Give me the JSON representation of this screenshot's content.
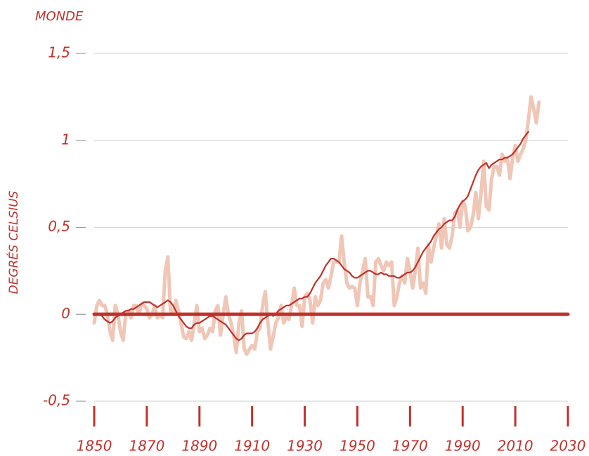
{
  "chart_data": {
    "type": "line",
    "title": "MONDE",
    "y_label": "DEGRÉS CELSIUS",
    "x": [
      1850,
      1851,
      1852,
      1853,
      1854,
      1855,
      1856,
      1857,
      1858,
      1859,
      1860,
      1861,
      1862,
      1863,
      1864,
      1865,
      1866,
      1867,
      1868,
      1869,
      1870,
      1871,
      1872,
      1873,
      1874,
      1875,
      1876,
      1877,
      1878,
      1879,
      1880,
      1881,
      1882,
      1883,
      1884,
      1885,
      1886,
      1887,
      1888,
      1889,
      1890,
      1891,
      1892,
      1893,
      1894,
      1895,
      1896,
      1897,
      1898,
      1899,
      1900,
      1901,
      1902,
      1903,
      1904,
      1905,
      1906,
      1907,
      1908,
      1909,
      1910,
      1911,
      1912,
      1913,
      1914,
      1915,
      1916,
      1917,
      1918,
      1919,
      1920,
      1921,
      1922,
      1923,
      1924,
      1925,
      1926,
      1927,
      1928,
      1929,
      1930,
      1931,
      1932,
      1933,
      1934,
      1935,
      1936,
      1937,
      1938,
      1939,
      1940,
      1941,
      1942,
      1943,
      1944,
      1945,
      1946,
      1947,
      1948,
      1949,
      1950,
      1951,
      1952,
      1953,
      1954,
      1955,
      1956,
      1957,
      1958,
      1959,
      1960,
      1961,
      1962,
      1963,
      1964,
      1965,
      1966,
      1967,
      1968,
      1969,
      1970,
      1971,
      1972,
      1973,
      1974,
      1975,
      1976,
      1977,
      1978,
      1979,
      1980,
      1981,
      1982,
      1983,
      1984,
      1985,
      1986,
      1987,
      1988,
      1989,
      1990,
      1991,
      1992,
      1993,
      1994,
      1995,
      1996,
      1997,
      1998,
      1999,
      2000,
      2001,
      2002,
      2003,
      2004,
      2005,
      2006,
      2007,
      2008,
      2009,
      2010,
      2011,
      2012,
      2013,
      2014,
      2015,
      2016,
      2017,
      2018,
      2019
    ],
    "series": [
      {
        "color": "#f0c6b6",
        "values": [
          -0.05,
          0.05,
          0.08,
          0.05,
          0.05,
          0.0,
          -0.1,
          -0.15,
          0.05,
          0.0,
          -0.1,
          -0.15,
          0.0,
          0.02,
          -0.02,
          0.05,
          0.05,
          0.0,
          0.06,
          0.05,
          0.03,
          -0.02,
          0.0,
          0.05,
          -0.02,
          0.0,
          -0.02,
          0.25,
          0.33,
          0.02,
          0.0,
          0.08,
          0.02,
          -0.05,
          -0.13,
          -0.14,
          -0.1,
          -0.15,
          -0.05,
          0.05,
          -0.1,
          -0.08,
          -0.14,
          -0.12,
          -0.08,
          -0.1,
          0.02,
          0.05,
          -0.12,
          0.0,
          0.1,
          0.0,
          -0.05,
          -0.12,
          -0.22,
          -0.05,
          0.02,
          -0.2,
          -0.23,
          -0.2,
          -0.18,
          -0.2,
          -0.1,
          -0.08,
          0.05,
          0.13,
          -0.05,
          -0.2,
          -0.13,
          -0.05,
          -0.02,
          0.05,
          -0.05,
          -0.02,
          -0.03,
          0.05,
          0.15,
          0.05,
          0.05,
          -0.07,
          0.1,
          0.12,
          0.08,
          -0.05,
          0.1,
          0.05,
          0.08,
          0.18,
          0.2,
          0.15,
          0.22,
          0.3,
          0.3,
          0.3,
          0.45,
          0.3,
          0.18,
          0.15,
          0.16,
          0.15,
          0.05,
          0.18,
          0.25,
          0.32,
          0.1,
          0.1,
          0.05,
          0.3,
          0.32,
          0.28,
          0.25,
          0.3,
          0.28,
          0.3,
          0.05,
          0.1,
          0.18,
          0.22,
          0.18,
          0.32,
          0.25,
          0.15,
          0.25,
          0.38,
          0.15,
          0.18,
          0.12,
          0.4,
          0.3,
          0.38,
          0.45,
          0.52,
          0.38,
          0.55,
          0.4,
          0.38,
          0.45,
          0.58,
          0.6,
          0.5,
          0.65,
          0.62,
          0.48,
          0.5,
          0.57,
          0.7,
          0.55,
          0.7,
          0.88,
          0.62,
          0.6,
          0.78,
          0.85,
          0.85,
          0.8,
          0.92,
          0.88,
          0.9,
          0.78,
          0.9,
          0.97,
          0.88,
          0.92,
          0.95,
          1.0,
          1.12,
          1.25,
          1.18,
          1.1,
          1.22
        ]
      },
      {
        "color": "#c0312b",
        "values": [
          0.0,
          0.0,
          0.0,
          -0.01,
          -0.03,
          -0.04,
          -0.05,
          -0.04,
          -0.02,
          -0.01,
          0.0,
          0.01,
          0.02,
          0.02,
          0.03,
          0.03,
          0.04,
          0.05,
          0.06,
          0.07,
          0.07,
          0.07,
          0.06,
          0.05,
          0.04,
          0.05,
          0.06,
          0.07,
          0.08,
          0.07,
          0.05,
          0.02,
          -0.01,
          -0.03,
          -0.05,
          -0.07,
          -0.08,
          -0.08,
          -0.06,
          -0.05,
          -0.05,
          -0.04,
          -0.03,
          -0.02,
          -0.01,
          -0.01,
          -0.02,
          -0.03,
          -0.04,
          -0.05,
          -0.06,
          -0.08,
          -0.1,
          -0.12,
          -0.14,
          -0.15,
          -0.14,
          -0.12,
          -0.11,
          -0.11,
          -0.11,
          -0.1,
          -0.08,
          -0.05,
          -0.03,
          -0.02,
          -0.01,
          0.0,
          -0.01,
          0.0,
          0.02,
          0.03,
          0.04,
          0.05,
          0.05,
          0.06,
          0.07,
          0.08,
          0.09,
          0.09,
          0.1,
          0.1,
          0.12,
          0.15,
          0.18,
          0.2,
          0.22,
          0.25,
          0.28,
          0.3,
          0.32,
          0.32,
          0.31,
          0.3,
          0.28,
          0.26,
          0.25,
          0.24,
          0.22,
          0.21,
          0.21,
          0.22,
          0.23,
          0.24,
          0.25,
          0.25,
          0.24,
          0.23,
          0.23,
          0.24,
          0.23,
          0.23,
          0.22,
          0.22,
          0.22,
          0.21,
          0.21,
          0.22,
          0.23,
          0.24,
          0.24,
          0.25,
          0.27,
          0.3,
          0.33,
          0.36,
          0.38,
          0.4,
          0.42,
          0.45,
          0.47,
          0.49,
          0.5,
          0.52,
          0.53,
          0.54,
          0.54,
          0.56,
          0.6,
          0.63,
          0.65,
          0.66,
          0.68,
          0.72,
          0.76,
          0.8,
          0.83,
          0.85,
          0.86,
          0.87,
          0.84,
          0.86,
          0.87,
          0.88,
          0.89,
          0.89,
          0.9,
          0.9,
          0.91,
          0.92,
          0.94,
          0.96,
          0.98,
          1.01,
          1.03,
          1.05,
          null,
          null,
          null,
          null
        ]
      }
    ],
    "reference_line": {
      "value": 0,
      "color": "#c0312b"
    },
    "xlim": [
      1850,
      2030
    ],
    "xticks": [
      1850,
      1870,
      1890,
      1910,
      1930,
      1950,
      1970,
      1990,
      2010,
      2030
    ],
    "ylim": [
      -0.5,
      1.5
    ],
    "yticks": [
      {
        "value": -0.5,
        "label": "-0,5"
      },
      0,
      {
        "value": 0.5,
        "label": "0,5"
      },
      1,
      {
        "value": 1.5,
        "label": "1,5"
      }
    ],
    "grid": true
  }
}
